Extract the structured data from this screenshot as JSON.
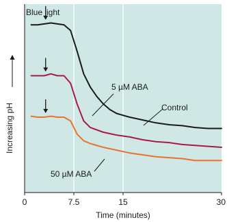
{
  "chart_data": {
    "type": "line",
    "title": "",
    "xlabel": "Time (minutes)",
    "ylabel": "Increasing pH",
    "xlim": [
      0,
      30
    ],
    "ylim": [
      0,
      100
    ],
    "x_ticks": [
      0,
      7.5,
      15,
      30
    ],
    "x_tick_labels": [
      "0",
      "7.5",
      "15",
      "30"
    ],
    "y_ticks_shown": false,
    "background_color": "#cfe8e5",
    "grid": "vertical lines at 7.5 and 15",
    "annotations": {
      "stimulus_label": "Blue light",
      "stimulus_time": 3.2
    },
    "series": [
      {
        "name": "Control",
        "color": "#1a1a1a",
        "x": [
          1,
          2,
          3,
          4,
          5,
          6,
          7,
          8,
          9,
          10,
          11,
          12,
          13,
          14,
          15,
          16,
          18,
          20,
          22,
          24,
          26,
          28,
          30
        ],
        "y": [
          89,
          89,
          89.5,
          90,
          89.5,
          89,
          86,
          75,
          63,
          56,
          51,
          47,
          44,
          42,
          41,
          40,
          38.5,
          37,
          36,
          35.5,
          34.5,
          34,
          34
        ]
      },
      {
        "name": "5 µM ABA",
        "color": "#a8194a",
        "x": [
          1,
          2,
          3,
          4,
          5,
          6,
          7,
          8,
          9,
          10,
          12,
          14,
          16,
          18,
          20,
          22,
          24,
          26,
          28,
          30
        ],
        "y": [
          62,
          62,
          62,
          63,
          62,
          62,
          58,
          47,
          38,
          34.5,
          32,
          30.5,
          29.5,
          28,
          27,
          26.5,
          25.5,
          25,
          24.5,
          24
        ]
      },
      {
        "name": "50 µM ABA",
        "color": "#e8742a",
        "x": [
          1,
          2,
          3,
          4,
          5,
          6,
          7,
          8,
          9,
          10,
          12,
          14,
          16,
          18,
          20,
          22,
          24,
          26,
          28,
          30
        ],
        "y": [
          40.5,
          40,
          40,
          40.5,
          40,
          40,
          38,
          31,
          27.5,
          26,
          24,
          22.5,
          21,
          20,
          19,
          18.5,
          18,
          17,
          17,
          17
        ]
      }
    ]
  }
}
